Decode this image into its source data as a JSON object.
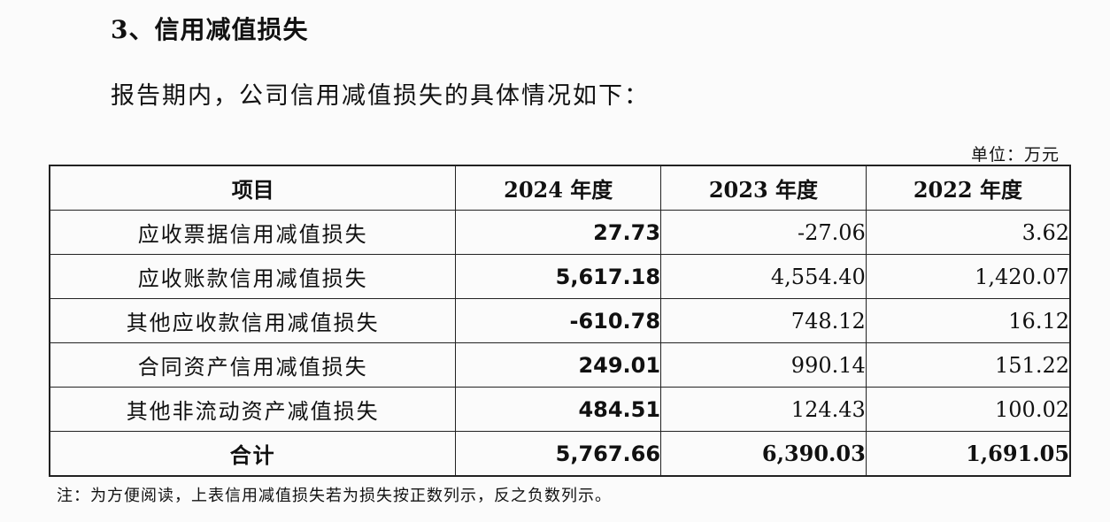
{
  "heading": "3、信用减值损失",
  "intro": "报告期内，公司信用减值损失的具体情况如下：",
  "unit": "单位：万元",
  "table": {
    "headers": [
      "项目",
      "2024 年度",
      "2023 年度",
      "2022 年度"
    ],
    "rows": [
      {
        "item": "应收票据信用减值损失",
        "y2024": "27.73",
        "y2023": "-27.06",
        "y2022": "3.62"
      },
      {
        "item": "应收账款信用减值损失",
        "y2024": "5,617.18",
        "y2023": "4,554.40",
        "y2022": "1,420.07"
      },
      {
        "item": "其他应收款信用减值损失",
        "y2024": "-610.78",
        "y2023": "748.12",
        "y2022": "16.12"
      },
      {
        "item": "合同资产信用减值损失",
        "y2024": "249.01",
        "y2023": "990.14",
        "y2022": "151.22"
      },
      {
        "item": "其他非流动资产减值损失",
        "y2024": "484.51",
        "y2023": "124.43",
        "y2022": "100.02"
      },
      {
        "item": "合计",
        "y2024": "5,767.66",
        "y2023": "6,390.03",
        "y2022": "1,691.05"
      }
    ]
  },
  "note": "注：为方便阅读，上表信用减值损失若为损失按正数列示，反之负数列示。"
}
